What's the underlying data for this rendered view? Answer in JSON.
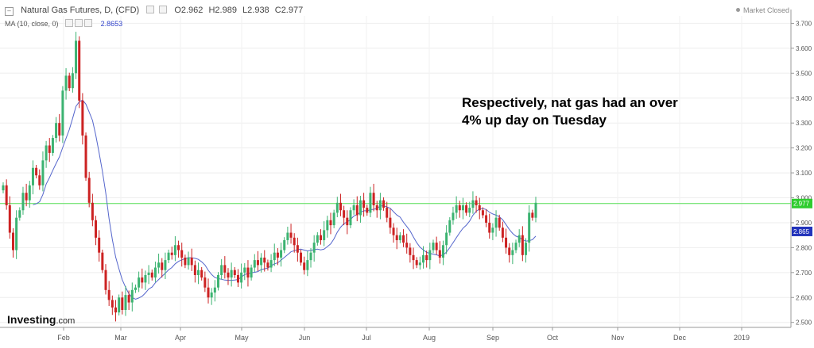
{
  "header": {
    "title": "Natural Gas Futures, D, (CFD)",
    "open": "O2.962",
    "high": "H2.989",
    "low": "L2.938",
    "close": "C2.977"
  },
  "indicator": {
    "label": "MA (10, close, 0)",
    "value": "2.8653"
  },
  "status": "Market Closed",
  "annotation": {
    "line1": "Respectively, nat gas had an over",
    "line2": "4% up day on Tuesday"
  },
  "logo": {
    "brand": "Investing",
    "suffix": ".com"
  },
  "colors": {
    "up": "#3cb371",
    "down": "#cc2222",
    "ma": "#5566cc",
    "hline": "#55dd55",
    "price_tag": "#2ecc2e",
    "ma_tag": "#2233bb"
  },
  "chart_data": {
    "type": "candlestick",
    "ylim": [
      2.48,
      3.73
    ],
    "yticks": [
      "2.500",
      "2.600",
      "2.700",
      "2.800",
      "2.900",
      "3.000",
      "3.100",
      "3.200",
      "3.300",
      "3.400",
      "3.500",
      "3.600",
      "3.700"
    ],
    "xticks": [
      "Feb",
      "Mar",
      "Apr",
      "May",
      "Jun",
      "Jul",
      "Aug",
      "Sep",
      "Oct",
      "Nov",
      "Dec",
      "2019"
    ],
    "last_price": {
      "value": 2.977,
      "label": "2.977"
    },
    "ma_value": {
      "value": 2.865,
      "label": "2.865"
    },
    "closes": [
      3.05,
      2.97,
      2.86,
      2.79,
      2.92,
      2.95,
      3.02,
      2.99,
      3.05,
      3.12,
      3.09,
      3.05,
      3.15,
      3.21,
      3.18,
      3.24,
      3.3,
      3.25,
      3.43,
      3.49,
      3.44,
      3.5,
      3.63,
      3.39,
      3.25,
      3.08,
      2.98,
      2.91,
      2.84,
      2.78,
      2.71,
      2.63,
      2.59,
      2.56,
      2.54,
      2.6,
      2.55,
      2.61,
      2.58,
      2.63,
      2.64,
      2.68,
      2.66,
      2.69,
      2.7,
      2.68,
      2.72,
      2.74,
      2.71,
      2.75,
      2.78,
      2.77,
      2.81,
      2.79,
      2.76,
      2.73,
      2.76,
      2.73,
      2.69,
      2.71,
      2.68,
      2.64,
      2.6,
      2.62,
      2.64,
      2.69,
      2.73,
      2.7,
      2.68,
      2.71,
      2.69,
      2.66,
      2.7,
      2.72,
      2.68,
      2.72,
      2.75,
      2.73,
      2.76,
      2.74,
      2.72,
      2.75,
      2.78,
      2.76,
      2.79,
      2.83,
      2.86,
      2.84,
      2.81,
      2.78,
      2.74,
      2.71,
      2.75,
      2.78,
      2.82,
      2.85,
      2.83,
      2.87,
      2.91,
      2.89,
      2.94,
      2.98,
      2.95,
      2.92,
      2.89,
      2.95,
      2.97,
      2.93,
      2.99,
      2.96,
      2.94,
      3.02,
      2.97,
      2.95,
      2.99,
      2.96,
      2.92,
      2.88,
      2.85,
      2.83,
      2.85,
      2.82,
      2.8,
      2.77,
      2.75,
      2.73,
      2.74,
      2.77,
      2.75,
      2.79,
      2.82,
      2.79,
      2.76,
      2.81,
      2.86,
      2.91,
      2.94,
      2.97,
      2.95,
      2.97,
      2.94,
      2.96,
      2.99,
      2.97,
      2.95,
      2.93,
      2.9,
      2.86,
      2.88,
      2.92,
      2.88,
      2.84,
      2.8,
      2.77,
      2.79,
      2.82,
      2.85,
      2.77,
      2.82,
      2.94,
      2.92,
      2.98
    ]
  }
}
